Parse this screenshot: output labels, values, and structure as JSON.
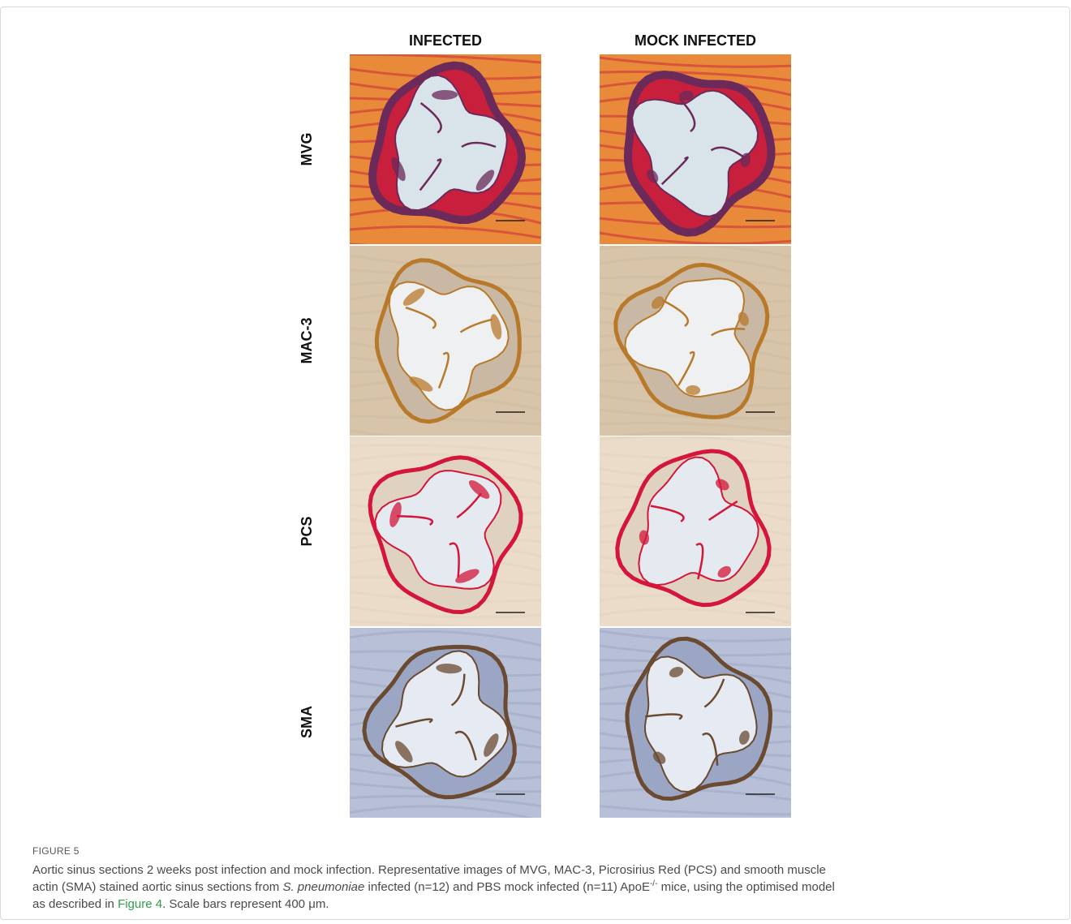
{
  "figure": {
    "column_headers": [
      "INFECTED",
      "MOCK INFECTED"
    ],
    "row_labels": [
      "MVG",
      "MAC-3",
      "PCS",
      "SMA"
    ],
    "panel_colors": {
      "MVG": {
        "bg": "#d9e3ea",
        "tissue": "#c8203c",
        "dark": "#6b2a5a",
        "muscle": "#e88a3a"
      },
      "MAC-3": {
        "bg": "#eef0f2",
        "tissue": "#c9b9a4",
        "dark": "#b87a2a",
        "muscle": "#d8c4a8"
      },
      "PCS": {
        "bg": "#e4eaf0",
        "tissue": "#e0d2c0",
        "dark": "#d4163a",
        "muscle": "#eadcc8"
      },
      "SMA": {
        "bg": "#e6eaf2",
        "tissue": "#9aa6c4",
        "dark": "#6a4a30",
        "muscle": "#b8c0d8"
      }
    }
  },
  "caption": {
    "label": "FIGURE 5",
    "line1": "Aortic sinus sections 2 weeks post infection and mock infection. Representative images of MVG, MAC-3, Picrosirius Red (PCS) and smooth muscle",
    "line2_a": "actin (SMA) stained aortic sinus sections from ",
    "species": "S. pneumoniae",
    "line2_b": " infected (n=12) and PBS mock infected (n=11) ApoE",
    "superscript": "-/-",
    "line2_c": " mice, using the optimised model",
    "line3_a": "as described in ",
    "figure_link": "Figure 4",
    "line3_b": ". Scale bars represent 400 μm."
  }
}
